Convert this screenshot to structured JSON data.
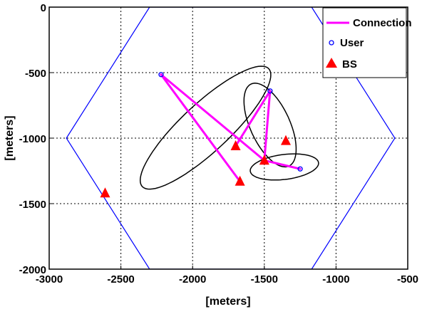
{
  "chart_data": {
    "type": "scatter",
    "xlabel": "[meters]",
    "ylabel": "[meters]",
    "xlim": [
      -3000,
      -500
    ],
    "ylim": [
      -2000,
      0
    ],
    "xticks": [
      -3000,
      -2500,
      -2000,
      -1500,
      -1000,
      -500
    ],
    "yticks": [
      0,
      -500,
      -1000,
      -1500,
      -2000
    ],
    "xtick_labels": [
      "-3000",
      "-2500",
      "-2000",
      "-1500",
      "-1000",
      "-500"
    ],
    "ytick_labels": [
      "0",
      "-500",
      "-1000",
      "-1500",
      "-2000"
    ],
    "grid": true,
    "legend_position": "top-right",
    "legend": [
      {
        "label": "Connection",
        "color": "#ff00ff",
        "marker": "line"
      },
      {
        "label": "User",
        "color": "#0000ff",
        "marker": "circle"
      },
      {
        "label": "BS",
        "color": "#ff0000",
        "marker": "triangle"
      }
    ],
    "hexagon": {
      "color": "#0000ff",
      "vertices": [
        [
          -2880,
          -1000
        ],
        [
          -2300,
          0
        ],
        [
          -1170,
          0
        ],
        [
          -590,
          -1000
        ],
        [
          -1170,
          -2000
        ],
        [
          -2300,
          -2000
        ]
      ]
    },
    "users": [
      {
        "x": -2220,
        "y": -515
      },
      {
        "x": -1460,
        "y": -640
      },
      {
        "x": -1250,
        "y": -1235
      }
    ],
    "base_stations": [
      {
        "x": -1700,
        "y": -1060
      },
      {
        "x": -1350,
        "y": -1020
      },
      {
        "x": -1500,
        "y": -1170
      },
      {
        "x": -1670,
        "y": -1330
      },
      {
        "x": -2610,
        "y": -1420
      }
    ],
    "connections": [
      [
        [
          -2220,
          -515
        ],
        [
          -1500,
          -1170
        ]
      ],
      [
        [
          -2220,
          -515
        ],
        [
          -1670,
          -1330
        ]
      ],
      [
        [
          -1460,
          -640
        ],
        [
          -1700,
          -1060
        ]
      ],
      [
        [
          -1460,
          -640
        ],
        [
          -1500,
          -1170
        ]
      ],
      [
        [
          -1250,
          -1235
        ],
        [
          -1500,
          -1170
        ]
      ]
    ],
    "ellipses": [
      {
        "cx": -1910,
        "cy": -920,
        "rx": 630,
        "ry": 175,
        "angle_deg": 46
      },
      {
        "cx": -1460,
        "cy": -900,
        "rx": 340,
        "ry": 140,
        "angle_deg": -68
      },
      {
        "cx": -1360,
        "cy": -1220,
        "rx": 240,
        "ry": 95,
        "angle_deg": 8
      }
    ]
  }
}
